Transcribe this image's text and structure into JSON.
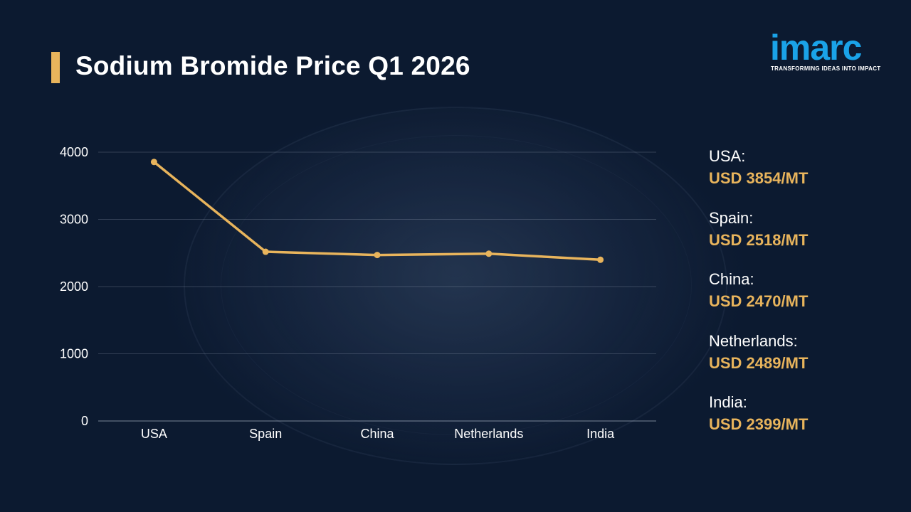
{
  "header": {
    "title": "Sodium Bromide Price Q1 2026"
  },
  "logo": {
    "wordmark": "imarc",
    "tagline": "TRANSFORMING IDEAS INTO IMPACT"
  },
  "colors": {
    "background": "#0f1d35",
    "accent": "#e8b45c",
    "line": "#e8b45c",
    "logo": "#1aa3e8",
    "text": "#ffffff"
  },
  "chart_data": {
    "type": "line",
    "categories": [
      "USA",
      "Spain",
      "China",
      "Netherlands",
      "India"
    ],
    "values": [
      3854,
      2518,
      2470,
      2489,
      2399
    ],
    "yticks": [
      0,
      1000,
      2000,
      3000,
      4000
    ],
    "ylim": [
      0,
      4000
    ],
    "grid": true,
    "title": "Sodium Bromide Price Q1 2026"
  },
  "legend": {
    "items": [
      {
        "country": "USA:",
        "price": "USD 3854/MT"
      },
      {
        "country": "Spain:",
        "price": "USD 2518/MT"
      },
      {
        "country": "China:",
        "price": "USD 2470/MT"
      },
      {
        "country": "Netherlands:",
        "price": "USD 2489/MT"
      },
      {
        "country": "India:",
        "price": "USD 2399/MT"
      }
    ]
  }
}
